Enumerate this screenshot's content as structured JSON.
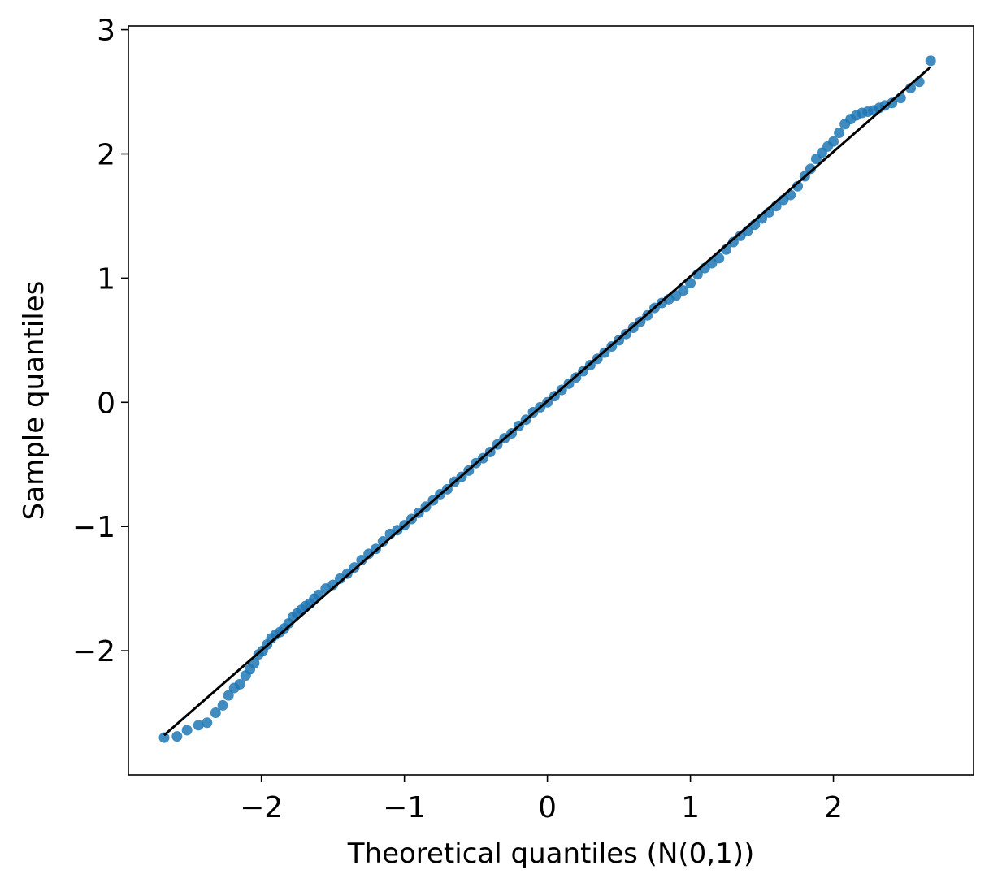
{
  "chart_data": {
    "type": "scatter",
    "title": "",
    "xlabel": "Theoretical quantiles (N(0,1))",
    "ylabel": "Sample quantiles",
    "xlim": [
      -2.93,
      2.98
    ],
    "ylim": [
      -3.0,
      3.03
    ],
    "xticks": [
      -2,
      -1,
      0,
      1,
      2
    ],
    "xtick_labels": [
      "−2",
      "−1",
      "0",
      "1",
      "2"
    ],
    "yticks": [
      -2,
      -1,
      0,
      1,
      2,
      3
    ],
    "ytick_labels": [
      "−2",
      "−1",
      "0",
      "1",
      "2",
      "3"
    ],
    "grid": false,
    "point_color": "#1f77b4",
    "line_color": "#000000",
    "reference_line": {
      "x": [
        -2.68,
        2.68
      ],
      "y": [
        -2.68,
        2.7
      ]
    },
    "series": [
      {
        "x": [
          -2.68,
          -2.59,
          -2.52,
          -2.44,
          -2.38,
          -2.32,
          -2.27,
          -2.23,
          -2.19,
          -2.15,
          -2.11,
          -2.08,
          -2.05,
          -2.02,
          -1.99,
          -1.96,
          -1.93,
          -1.9,
          -1.87,
          -1.84,
          -1.81,
          -1.78,
          -1.75,
          -1.72,
          -1.69,
          -1.66,
          -1.63,
          -1.6,
          -1.55,
          -1.5,
          -1.45,
          -1.4,
          -1.35,
          -1.3,
          -1.25,
          -1.2,
          -1.15,
          -1.1,
          -1.05,
          -1.0,
          -0.95,
          -0.9,
          -0.85,
          -0.8,
          -0.75,
          -0.7,
          -0.65,
          -0.6,
          -0.55,
          -0.5,
          -0.45,
          -0.4,
          -0.35,
          -0.3,
          -0.25,
          -0.2,
          -0.15,
          -0.1,
          -0.05,
          0.0,
          0.05,
          0.1,
          0.15,
          0.2,
          0.25,
          0.3,
          0.35,
          0.4,
          0.45,
          0.5,
          0.55,
          0.6,
          0.65,
          0.7,
          0.75,
          0.8,
          0.85,
          0.9,
          0.95,
          1.0,
          1.05,
          1.1,
          1.15,
          1.2,
          1.25,
          1.3,
          1.35,
          1.4,
          1.45,
          1.5,
          1.55,
          1.6,
          1.65,
          1.7,
          1.75,
          1.8,
          1.84,
          1.88,
          1.92,
          1.96,
          2.0,
          2.04,
          2.08,
          2.12,
          2.16,
          2.2,
          2.24,
          2.28,
          2.32,
          2.36,
          2.41,
          2.47,
          2.54,
          2.6,
          2.68
        ],
        "y": [
          -2.7,
          -2.69,
          -2.64,
          -2.6,
          -2.58,
          -2.5,
          -2.44,
          -2.36,
          -2.3,
          -2.27,
          -2.2,
          -2.15,
          -2.1,
          -2.03,
          -2.0,
          -1.95,
          -1.9,
          -1.87,
          -1.85,
          -1.82,
          -1.78,
          -1.73,
          -1.7,
          -1.67,
          -1.64,
          -1.62,
          -1.58,
          -1.55,
          -1.5,
          -1.47,
          -1.42,
          -1.38,
          -1.33,
          -1.27,
          -1.22,
          -1.18,
          -1.12,
          -1.06,
          -1.03,
          -0.99,
          -0.94,
          -0.89,
          -0.84,
          -0.79,
          -0.74,
          -0.7,
          -0.64,
          -0.6,
          -0.55,
          -0.49,
          -0.45,
          -0.4,
          -0.34,
          -0.29,
          -0.25,
          -0.19,
          -0.14,
          -0.08,
          -0.04,
          0.0,
          0.05,
          0.1,
          0.15,
          0.2,
          0.25,
          0.3,
          0.35,
          0.4,
          0.45,
          0.5,
          0.55,
          0.6,
          0.65,
          0.7,
          0.76,
          0.8,
          0.83,
          0.86,
          0.9,
          0.96,
          1.03,
          1.08,
          1.12,
          1.16,
          1.23,
          1.29,
          1.34,
          1.38,
          1.43,
          1.48,
          1.53,
          1.58,
          1.63,
          1.67,
          1.74,
          1.82,
          1.88,
          1.96,
          2.01,
          2.06,
          2.1,
          2.17,
          2.24,
          2.28,
          2.31,
          2.33,
          2.34,
          2.35,
          2.37,
          2.39,
          2.41,
          2.45,
          2.53,
          2.58,
          2.75
        ]
      }
    ]
  }
}
